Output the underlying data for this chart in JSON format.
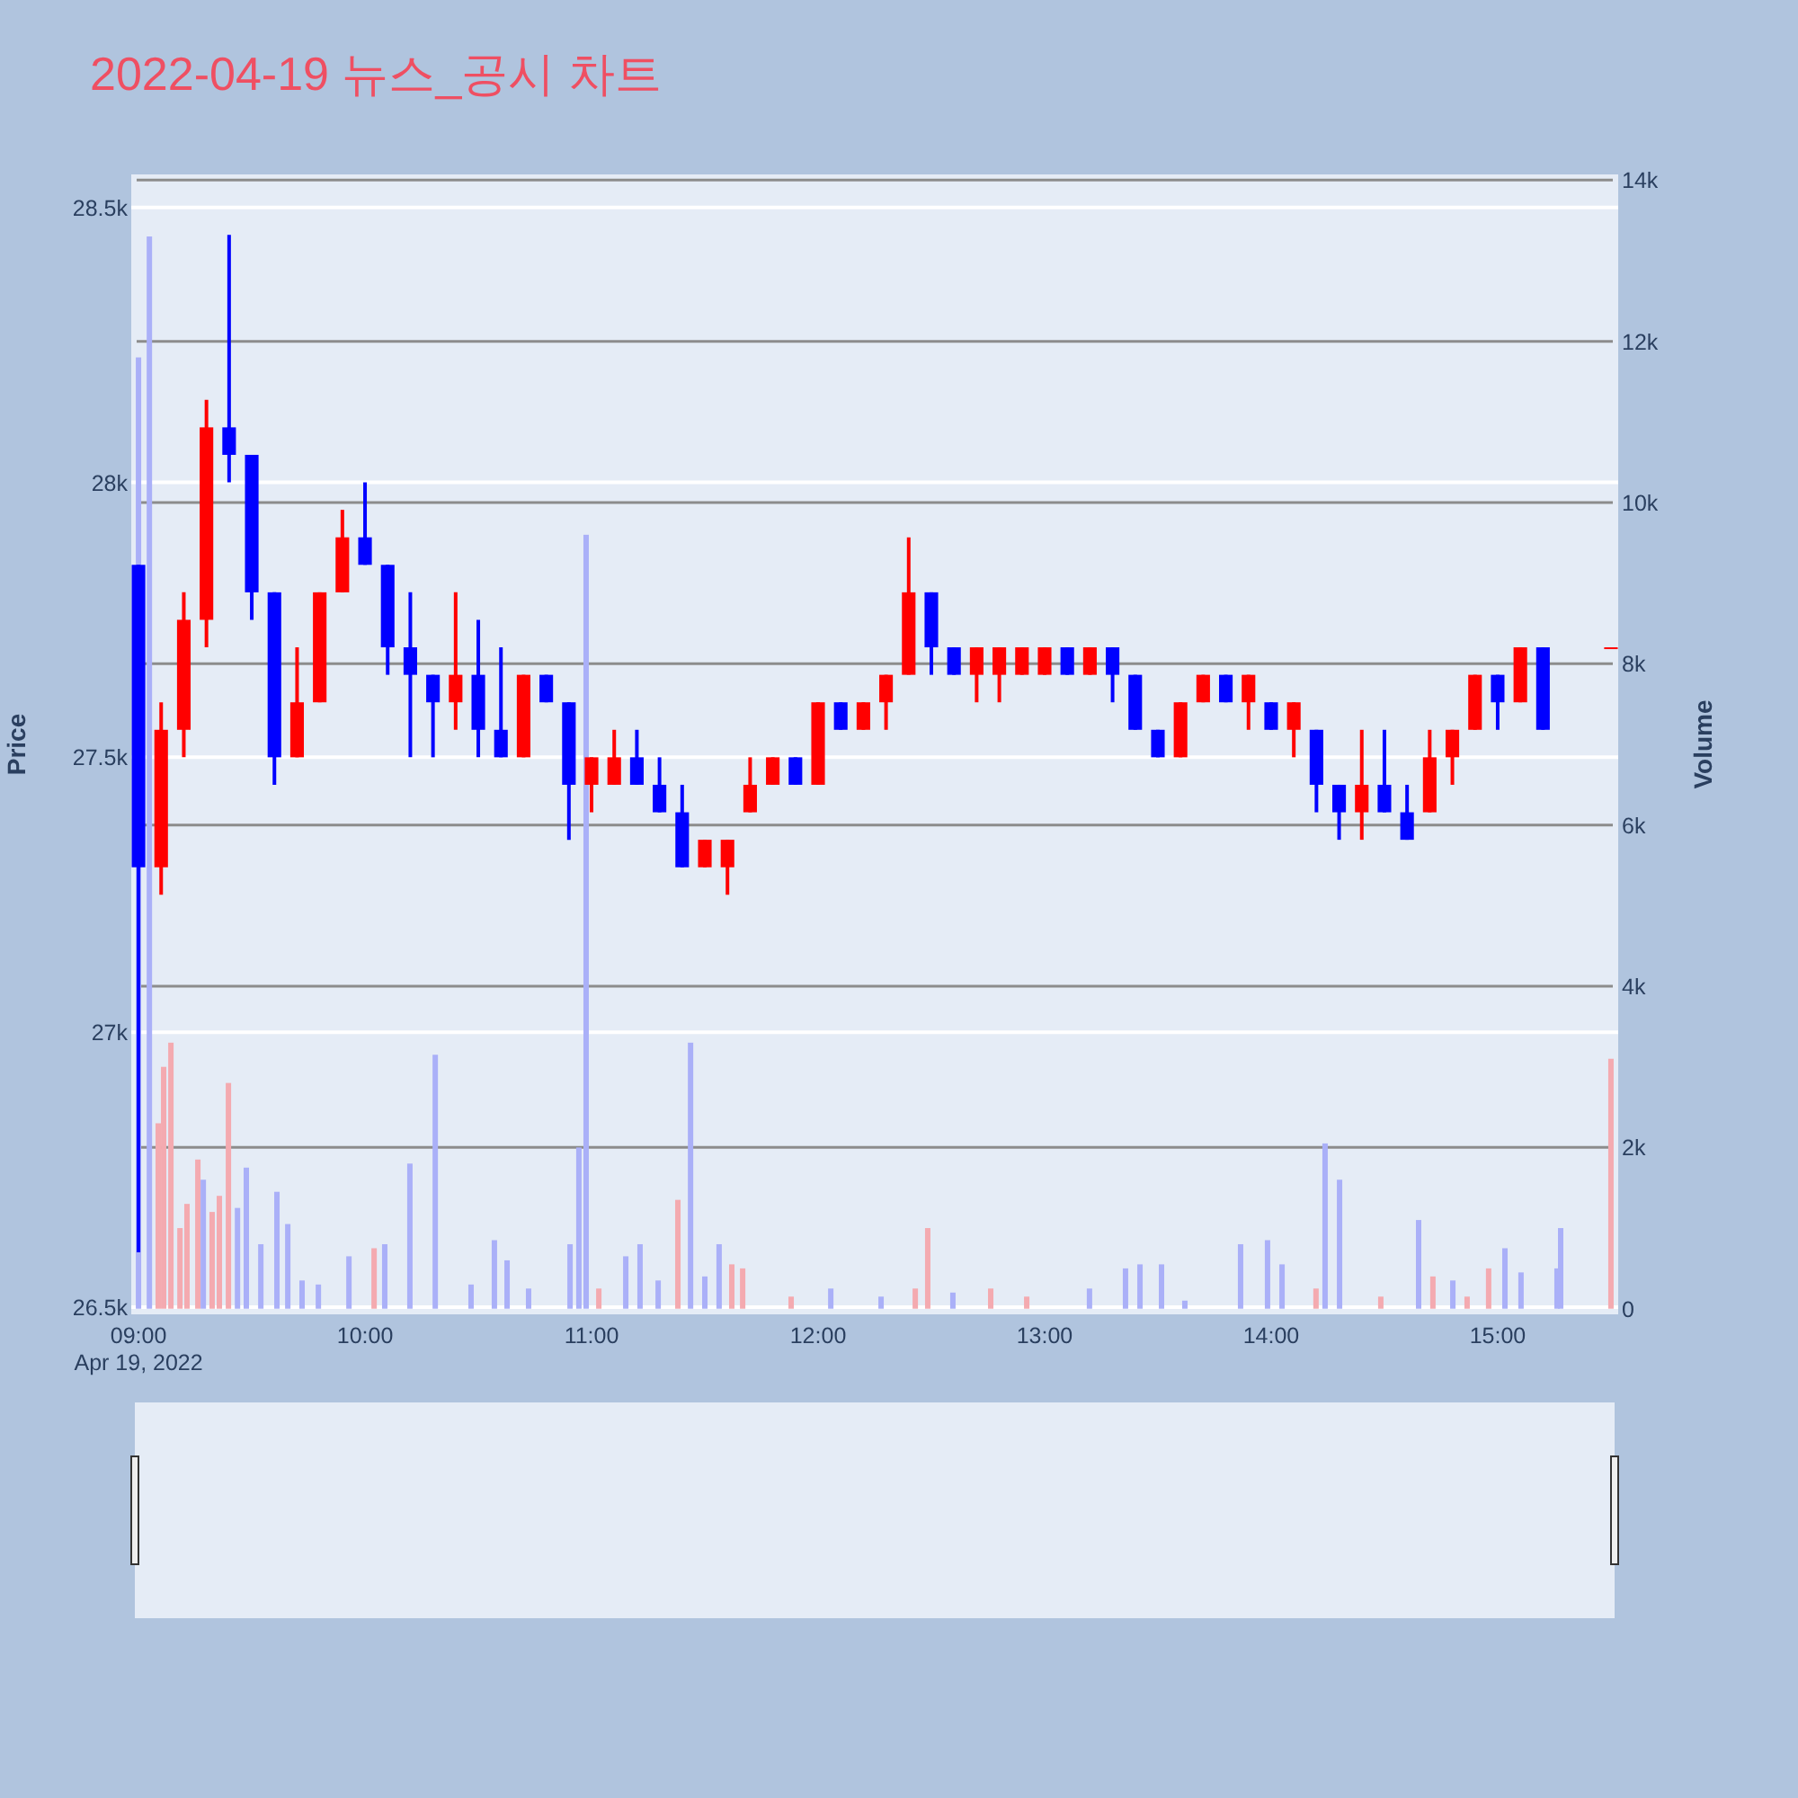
{
  "chart_data": {
    "type": "candlestick",
    "title": "2022-04-19 뉴스_공시 차트",
    "ylabel": "Price",
    "y2label": "Volume",
    "annotations": [
      "Apr 19, 2022"
    ],
    "x": [
      9.0,
      9.1,
      9.2,
      9.3,
      9.4,
      9.5,
      9.6,
      9.7,
      9.8,
      9.9,
      10.0,
      10.1,
      10.2,
      10.3,
      10.4,
      10.5,
      10.6,
      10.7,
      10.8,
      10.9,
      11.0,
      11.1,
      11.2,
      11.3,
      11.4,
      11.5,
      11.6,
      11.7,
      11.8,
      11.9,
      12.0,
      12.1,
      12.2,
      12.3,
      12.4,
      12.5,
      12.6,
      12.7,
      12.8,
      12.9,
      13.0,
      13.1,
      13.2,
      13.3,
      13.4,
      13.5,
      13.6,
      13.7,
      13.8,
      13.9,
      14.0,
      14.1,
      14.2,
      14.3,
      14.4,
      14.5,
      14.6,
      14.7,
      14.8,
      14.9,
      15.0,
      15.1,
      15.2,
      15.5
    ],
    "ohlc": [
      [
        27850,
        27850,
        26600,
        27300
      ],
      [
        27300,
        27600,
        27250,
        27550
      ],
      [
        27550,
        27800,
        27500,
        27750
      ],
      [
        27750,
        28150,
        27700,
        28100
      ],
      [
        28100,
        28450,
        28000,
        28050
      ],
      [
        28050,
        28050,
        27750,
        27800
      ],
      [
        27800,
        27800,
        27450,
        27500
      ],
      [
        27500,
        27700,
        27500,
        27600
      ],
      [
        27600,
        27800,
        27600,
        27800
      ],
      [
        27800,
        27950,
        27800,
        27900
      ],
      [
        27900,
        28000,
        27850,
        27850
      ],
      [
        27850,
        27850,
        27650,
        27700
      ],
      [
        27700,
        27800,
        27500,
        27650
      ],
      [
        27650,
        27650,
        27500,
        27600
      ],
      [
        27600,
        27800,
        27550,
        27650
      ],
      [
        27650,
        27750,
        27500,
        27550
      ],
      [
        27550,
        27700,
        27500,
        27500
      ],
      [
        27500,
        27650,
        27500,
        27650
      ],
      [
        27650,
        27650,
        27600,
        27600
      ],
      [
        27600,
        27600,
        27350,
        27450
      ],
      [
        27450,
        27500,
        27400,
        27500
      ],
      [
        27450,
        27550,
        27450,
        27500
      ],
      [
        27500,
        27550,
        27450,
        27450
      ],
      [
        27450,
        27500,
        27400,
        27400
      ],
      [
        27400,
        27450,
        27300,
        27300
      ],
      [
        27300,
        27350,
        27300,
        27350
      ],
      [
        27300,
        27350,
        27250,
        27350
      ],
      [
        27400,
        27500,
        27400,
        27450
      ],
      [
        27450,
        27500,
        27450,
        27500
      ],
      [
        27500,
        27500,
        27450,
        27450
      ],
      [
        27450,
        27600,
        27450,
        27600
      ],
      [
        27600,
        27600,
        27550,
        27550
      ],
      [
        27550,
        27600,
        27550,
        27600
      ],
      [
        27600,
        27650,
        27550,
        27650
      ],
      [
        27650,
        27900,
        27650,
        27800
      ],
      [
        27800,
        27800,
        27650,
        27700
      ],
      [
        27700,
        27700,
        27650,
        27650
      ],
      [
        27650,
        27700,
        27600,
        27700
      ],
      [
        27650,
        27700,
        27600,
        27700
      ],
      [
        27650,
        27700,
        27650,
        27700
      ],
      [
        27650,
        27700,
        27650,
        27700
      ],
      [
        27700,
        27700,
        27650,
        27650
      ],
      [
        27650,
        27700,
        27650,
        27700
      ],
      [
        27700,
        27700,
        27600,
        27650
      ],
      [
        27650,
        27650,
        27550,
        27550
      ],
      [
        27550,
        27550,
        27500,
        27500
      ],
      [
        27500,
        27600,
        27500,
        27600
      ],
      [
        27600,
        27650,
        27600,
        27650
      ],
      [
        27650,
        27650,
        27600,
        27600
      ],
      [
        27600,
        27650,
        27550,
        27650
      ],
      [
        27600,
        27600,
        27550,
        27550
      ],
      [
        27550,
        27600,
        27500,
        27600
      ],
      [
        27550,
        27550,
        27400,
        27450
      ],
      [
        27450,
        27450,
        27350,
        27400
      ],
      [
        27400,
        27550,
        27350,
        27450
      ],
      [
        27450,
        27550,
        27400,
        27400
      ],
      [
        27400,
        27450,
        27350,
        27350
      ],
      [
        27400,
        27550,
        27400,
        27500
      ],
      [
        27500,
        27550,
        27450,
        27550
      ],
      [
        27550,
        27650,
        27550,
        27650
      ],
      [
        27650,
        27650,
        27550,
        27600
      ],
      [
        27600,
        27700,
        27600,
        27700
      ],
      [
        27700,
        27700,
        27550,
        27550
      ],
      [
        27700,
        27700,
        27700,
        27700
      ]
    ],
    "colors": [
      "#0000ff",
      "#ff0000",
      "#ff0000",
      "#ff0000",
      "#0000ff",
      "#0000ff",
      "#0000ff",
      "#ff0000",
      "#ff0000",
      "#ff0000",
      "#0000ff",
      "#0000ff",
      "#0000ff",
      "#0000ff",
      "#ff0000",
      "#0000ff",
      "#0000ff",
      "#ff0000",
      "#0000ff",
      "#0000ff",
      "#ff0000",
      "#ff0000",
      "#0000ff",
      "#0000ff",
      "#0000ff",
      "#ff0000",
      "#ff0000",
      "#ff0000",
      "#ff0000",
      "#0000ff",
      "#ff0000",
      "#0000ff",
      "#ff0000",
      "#ff0000",
      "#ff0000",
      "#0000ff",
      "#0000ff",
      "#ff0000",
      "#ff0000",
      "#ff0000",
      "#ff0000",
      "#0000ff",
      "#ff0000",
      "#0000ff",
      "#0000ff",
      "#0000ff",
      "#ff0000",
      "#ff0000",
      "#0000ff",
      "#ff0000",
      "#0000ff",
      "#ff0000",
      "#0000ff",
      "#0000ff",
      "#ff0000",
      "#0000ff",
      "#0000ff",
      "#ff0000",
      "#ff0000",
      "#ff0000",
      "#0000ff",
      "#ff0000",
      "#0000ff",
      "#ff0000"
    ],
    "series": [
      {
        "type": "bar",
        "axis": "y2",
        "x": [
          9.0,
          9.048,
          9.087,
          9.111,
          9.143,
          9.183,
          9.214,
          9.262,
          9.286,
          9.325,
          9.357,
          9.397,
          9.437,
          9.476,
          9.54,
          9.611,
          9.659,
          9.722,
          9.794,
          9.929,
          10.04,
          10.087,
          10.198,
          10.31,
          10.468,
          10.571,
          10.627,
          10.722,
          10.905,
          10.944,
          10.976,
          11.032,
          11.151,
          11.214,
          11.294,
          11.381,
          11.437,
          11.5,
          11.563,
          11.619,
          11.667,
          11.881,
          12.056,
          12.278,
          12.429,
          12.484,
          12.595,
          12.762,
          12.921,
          13.198,
          13.357,
          13.421,
          13.516,
          13.619,
          13.865,
          13.984,
          14.048,
          14.198,
          14.238,
          14.302,
          14.484,
          14.651,
          14.714,
          14.802,
          14.865,
          14.96,
          15.032,
          15.103,
          15.262,
          15.278,
          15.5
        ],
        "values": [
          11800,
          13300,
          2300,
          3000,
          3300,
          1000,
          1300,
          1850,
          1600,
          1200,
          1400,
          2800,
          1250,
          1750,
          800,
          1450,
          1050,
          350,
          300,
          650,
          750,
          800,
          1800,
          3150,
          300,
          850,
          600,
          250,
          800,
          2000,
          9600,
          250,
          650,
          800,
          350,
          1350,
          3300,
          400,
          800,
          550,
          500,
          150,
          250,
          150,
          250,
          1000,
          200,
          250,
          150,
          250,
          500,
          550,
          550,
          100,
          800,
          850,
          550,
          250,
          2050,
          1600,
          150,
          1100,
          400,
          350,
          150,
          500,
          750,
          450,
          500,
          1000,
          3100
        ],
        "colors": [
          "#aab0f8",
          "#aab0f8",
          "#f4aab0",
          "#f4aab0",
          "#f4aab0",
          "#f4aab0",
          "#f4aab0",
          "#f4aab0",
          "#aab0f8",
          "#f4aab0",
          "#f4aab0",
          "#f4aab0",
          "#aab0f8",
          "#aab0f8",
          "#aab0f8",
          "#aab0f8",
          "#aab0f8",
          "#aab0f8",
          "#aab0f8",
          "#aab0f8",
          "#f4aab0",
          "#aab0f8",
          "#aab0f8",
          "#aab0f8",
          "#aab0f8",
          "#aab0f8",
          "#aab0f8",
          "#aab0f8",
          "#aab0f8",
          "#aab0f8",
          "#aab0f8",
          "#f4aab0",
          "#aab0f8",
          "#aab0f8",
          "#aab0f8",
          "#f4aab0",
          "#aab0f8",
          "#aab0f8",
          "#aab0f8",
          "#f4aab0",
          "#f4aab0",
          "#f4aab0",
          "#aab0f8",
          "#aab0f8",
          "#f4aab0",
          "#f4aab0",
          "#aab0f8",
          "#f4aab0",
          "#f4aab0",
          "#aab0f8",
          "#aab0f8",
          "#aab0f8",
          "#aab0f8",
          "#aab0f8",
          "#aab0f8",
          "#aab0f8",
          "#aab0f8",
          "#f4aab0",
          "#aab0f8",
          "#aab0f8",
          "#f4aab0",
          "#aab0f8",
          "#f4aab0",
          "#aab0f8",
          "#f4aab0",
          "#f4aab0",
          "#aab0f8",
          "#aab0f8",
          "#aab0f8",
          "#aab0f8",
          "#f4aab0"
        ]
      }
    ],
    "xlim": [
      8.968,
      15.532
    ],
    "xticks": [
      {
        "value": 9,
        "label": "09:00"
      },
      {
        "value": 10,
        "label": "10:00"
      },
      {
        "value": 11,
        "label": "11:00"
      },
      {
        "value": 12,
        "label": "12:00"
      },
      {
        "value": 13,
        "label": "13:00"
      },
      {
        "value": 14,
        "label": "14:00"
      },
      {
        "value": 15,
        "label": "15:00"
      }
    ],
    "ylim": [
      26487,
      28560
    ],
    "yticks": [
      {
        "value": 26500,
        "label": "26.5k"
      },
      {
        "value": 27000,
        "label": "27k"
      },
      {
        "value": 27500,
        "label": "27.5k"
      },
      {
        "value": 28000,
        "label": "28k"
      },
      {
        "value": 28500,
        "label": "28.5k"
      }
    ],
    "y2lim": [
      -70,
      14070
    ],
    "y2ticks": [
      0,
      {
        "value": 2000,
        "label": "2k"
      },
      {
        "value": 4000,
        "label": "4k"
      },
      {
        "value": 6000,
        "label": "6k"
      },
      {
        "value": 8000,
        "label": "8k"
      },
      {
        "value": 10000,
        "label": "10k"
      },
      {
        "value": 12000,
        "label": "12k"
      },
      {
        "value": 14000,
        "label": "14k"
      }
    ],
    "grid": "y"
  }
}
